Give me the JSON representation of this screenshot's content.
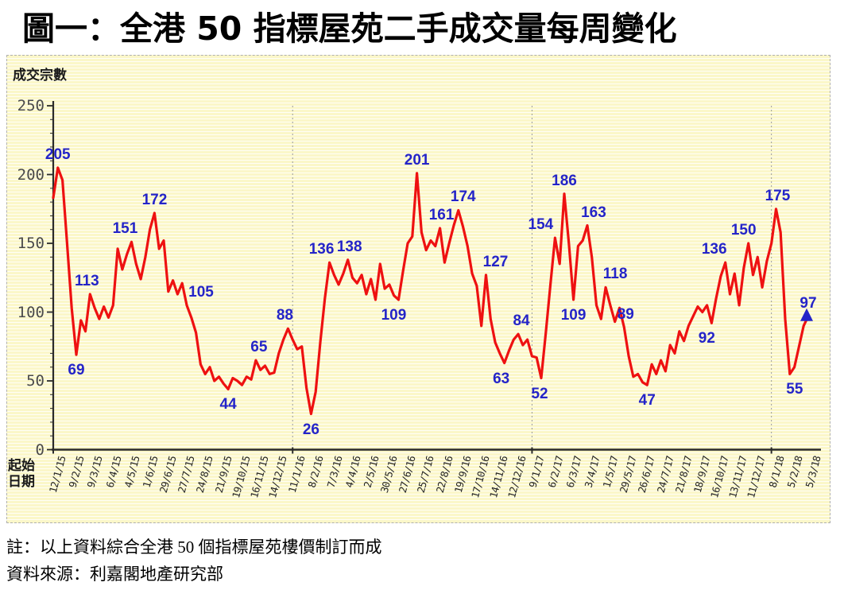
{
  "page_title": "圖一：全港 50 指標屋苑二手成交量每周變化",
  "chart_data": {
    "type": "line",
    "title": "圖一：全港 50 指標屋苑二手成交量每周變化",
    "ylabel": "成交宗數",
    "xlabel": "起始日期",
    "xlabel_lines": [
      "起始",
      "日期"
    ],
    "ylim": [
      0,
      250
    ],
    "yticks": [
      0,
      50,
      100,
      150,
      200,
      250
    ],
    "grid": "none",
    "legend": "none",
    "x_unit": "weekly points; x tick labels every 4 weeks (起始日期)",
    "weeks_per_tick": 4,
    "x_tick_labels": [
      "12/1/15",
      "9/2/15",
      "9/3/15",
      "6/4/15",
      "4/5/15",
      "1/6/15",
      "29/6/15",
      "27/7/15",
      "24/8/15",
      "21/9/15",
      "19/10/15",
      "16/11/15",
      "14/12/15",
      "11/1/16",
      "8/2/16",
      "7/3/16",
      "4/4/16",
      "2/5/16",
      "30/5/16",
      "27/6/16",
      "25/7/16",
      "22/8/16",
      "19/9/16",
      "17/10/16",
      "14/11/16",
      "12/12/16",
      "9/1/17",
      "6/2/17",
      "6/3/17",
      "3/4/17",
      "1/5/17",
      "29/5/17",
      "26/6/17",
      "24/7/17",
      "21/8/17",
      "18/9/17",
      "16/10/17",
      "13/11/17",
      "11/12/17",
      "8/1/18",
      "5/2/18",
      "5/3/18"
    ],
    "series": [
      {
        "name": "成交宗數",
        "color": "#ee1111",
        "values": [
          183,
          205,
          196,
          150,
          103,
          69,
          94,
          86,
          113,
          103,
          95,
          104,
          96,
          105,
          146,
          131,
          142,
          151,
          135,
          124,
          140,
          160,
          172,
          146,
          152,
          115,
          123,
          113,
          121,
          105,
          96,
          85,
          62,
          55,
          60,
          50,
          53,
          48,
          44,
          52,
          50,
          47,
          53,
          51,
          65,
          58,
          61,
          55,
          56,
          70,
          80,
          88,
          80,
          73,
          75,
          45,
          26,
          42,
          78,
          110,
          136,
          127,
          120,
          128,
          138,
          125,
          121,
          127,
          113,
          124,
          109,
          135,
          117,
          120,
          112,
          109,
          130,
          150,
          155,
          201,
          158,
          145,
          152,
          148,
          161,
          136,
          150,
          163,
          174,
          162,
          148,
          128,
          119,
          90,
          127,
          95,
          78,
          70,
          63,
          72,
          80,
          84,
          76,
          80,
          68,
          67,
          52,
          85,
          120,
          154,
          135,
          186,
          150,
          109,
          148,
          152,
          163,
          140,
          105,
          95,
          118,
          105,
          93,
          103,
          89,
          68,
          53,
          55,
          49,
          47,
          62,
          55,
          65,
          57,
          76,
          70,
          86,
          79,
          90,
          97,
          104,
          100,
          105,
          92,
          110,
          126,
          136,
          113,
          128,
          105,
          132,
          150,
          127,
          140,
          118,
          137,
          150,
          175,
          158,
          95,
          55,
          60,
          75,
          90,
          97
        ]
      }
    ],
    "annotations": [
      {
        "week": 1,
        "value": 205,
        "pos": "above",
        "dx": 0
      },
      {
        "week": 5,
        "value": 69,
        "pos": "below",
        "dx": 0
      },
      {
        "week": 8,
        "value": 113,
        "pos": "above",
        "dx": -4
      },
      {
        "week": 17,
        "value": 151,
        "pos": "above",
        "dx": -8
      },
      {
        "week": 22,
        "value": 172,
        "pos": "above",
        "dx": 0
      },
      {
        "week": 29,
        "value": 105,
        "pos": "above",
        "dx": 18
      },
      {
        "week": 38,
        "value": 44,
        "pos": "below",
        "dx": 0
      },
      {
        "week": 44,
        "value": 65,
        "pos": "above",
        "dx": 4
      },
      {
        "week": 51,
        "value": 88,
        "pos": "above",
        "dx": -4
      },
      {
        "week": 56,
        "value": 26,
        "pos": "below",
        "dx": 0
      },
      {
        "week": 60,
        "value": 136,
        "pos": "above",
        "dx": -10
      },
      {
        "week": 64,
        "value": 138,
        "pos": "above",
        "dx": 2
      },
      {
        "week": 75,
        "value": 109,
        "pos": "below",
        "dx": -6
      },
      {
        "week": 79,
        "value": 201,
        "pos": "above",
        "dx": 0
      },
      {
        "week": 84,
        "value": 161,
        "pos": "above",
        "dx": 2
      },
      {
        "week": 88,
        "value": 174,
        "pos": "above",
        "dx": 6
      },
      {
        "week": 94,
        "value": 127,
        "pos": "above",
        "dx": 12
      },
      {
        "week": 98,
        "value": 63,
        "pos": "below",
        "dx": -4
      },
      {
        "week": 101,
        "value": 84,
        "pos": "above",
        "dx": 4
      },
      {
        "week": 106,
        "value": 52,
        "pos": "below",
        "dx": -2
      },
      {
        "week": 109,
        "value": 154,
        "pos": "above",
        "dx": -18
      },
      {
        "week": 111,
        "value": 186,
        "pos": "above",
        "dx": 0
      },
      {
        "week": 113,
        "value": 109,
        "pos": "below",
        "dx": 0
      },
      {
        "week": 116,
        "value": 163,
        "pos": "above",
        "dx": 8
      },
      {
        "week": 120,
        "value": 118,
        "pos": "above",
        "dx": 12
      },
      {
        "week": 124,
        "value": 89,
        "pos": "above",
        "dx": 2
      },
      {
        "week": 129,
        "value": 47,
        "pos": "below",
        "dx": 0
      },
      {
        "week": 143,
        "value": 92,
        "pos": "below",
        "dx": -6
      },
      {
        "week": 146,
        "value": 136,
        "pos": "above",
        "dx": -14
      },
      {
        "week": 151,
        "value": 150,
        "pos": "above",
        "dx": -6
      },
      {
        "week": 157,
        "value": 175,
        "pos": "above",
        "dx": 2
      },
      {
        "week": 160,
        "value": 55,
        "pos": "below",
        "dx": 6
      },
      {
        "week": 164,
        "value": 97,
        "pos": "above",
        "dx": 0
      }
    ],
    "year_divider_weeks": [
      52,
      104,
      156
    ],
    "end_marker": {
      "week": 164,
      "value": 97,
      "shape": "triangle-up",
      "color": "#2424c8"
    },
    "notes": [
      "註：以上資料綜合全港 50 個指標屋苑樓價制訂而成",
      "資料來源：利嘉閣地產研究部"
    ],
    "colors": {
      "line": "#ee1111",
      "value_label": "#2424c8",
      "axis": "#2b2b2b",
      "divider": "#9a9a9a",
      "panel_stripe_yellow": "#fbf7c9",
      "panel_stripe_white": "#fffef6"
    }
  }
}
